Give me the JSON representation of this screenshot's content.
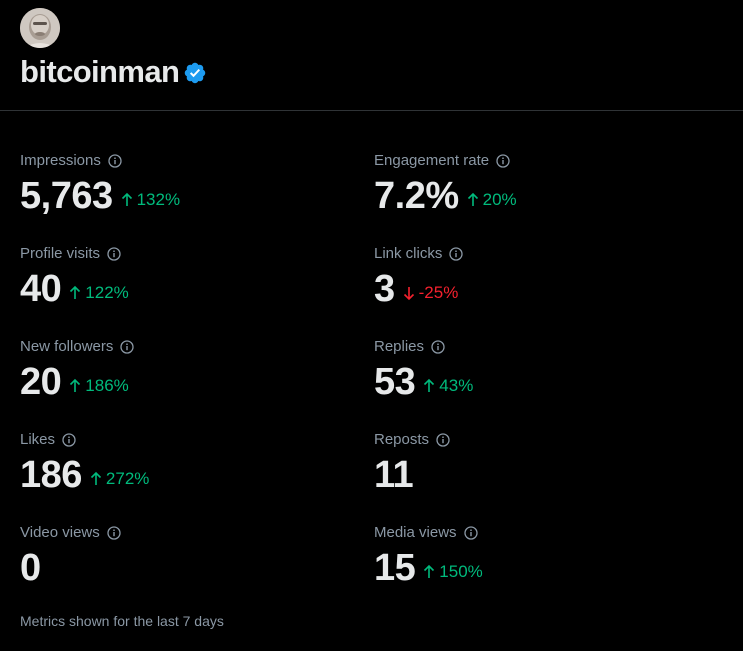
{
  "profile": {
    "username": "bitcoinman",
    "verified": true,
    "avatar_icon": "avatar-photo"
  },
  "colors": {
    "background": "#000000",
    "primary_text": "#e7e9ea",
    "secondary_text": "#8b98a5",
    "positive": "#00ba7c",
    "negative": "#f4212e",
    "verified_blue": "#1d9bf0",
    "divider": "#2f3336"
  },
  "metrics": {
    "impressions": {
      "label": "Impressions",
      "value": "5,763",
      "change": "132%",
      "direction": "up"
    },
    "engagement_rate": {
      "label": "Engagement rate",
      "value": "7.2%",
      "change": "20%",
      "direction": "up"
    },
    "profile_visits": {
      "label": "Profile visits",
      "value": "40",
      "change": "122%",
      "direction": "up"
    },
    "link_clicks": {
      "label": "Link clicks",
      "value": "3",
      "change": "-25%",
      "direction": "down"
    },
    "new_followers": {
      "label": "New followers",
      "value": "20",
      "change": "186%",
      "direction": "up"
    },
    "replies": {
      "label": "Replies",
      "value": "53",
      "change": "43%",
      "direction": "up"
    },
    "likes": {
      "label": "Likes",
      "value": "186",
      "change": "272%",
      "direction": "up"
    },
    "reposts": {
      "label": "Reposts",
      "value": "11",
      "change": "",
      "direction": "none"
    },
    "video_views": {
      "label": "Video views",
      "value": "0",
      "change": "",
      "direction": "none"
    },
    "media_views": {
      "label": "Media views",
      "value": "15",
      "change": "150%",
      "direction": "up"
    }
  },
  "footer": {
    "note": "Metrics shown for the last 7 days"
  }
}
